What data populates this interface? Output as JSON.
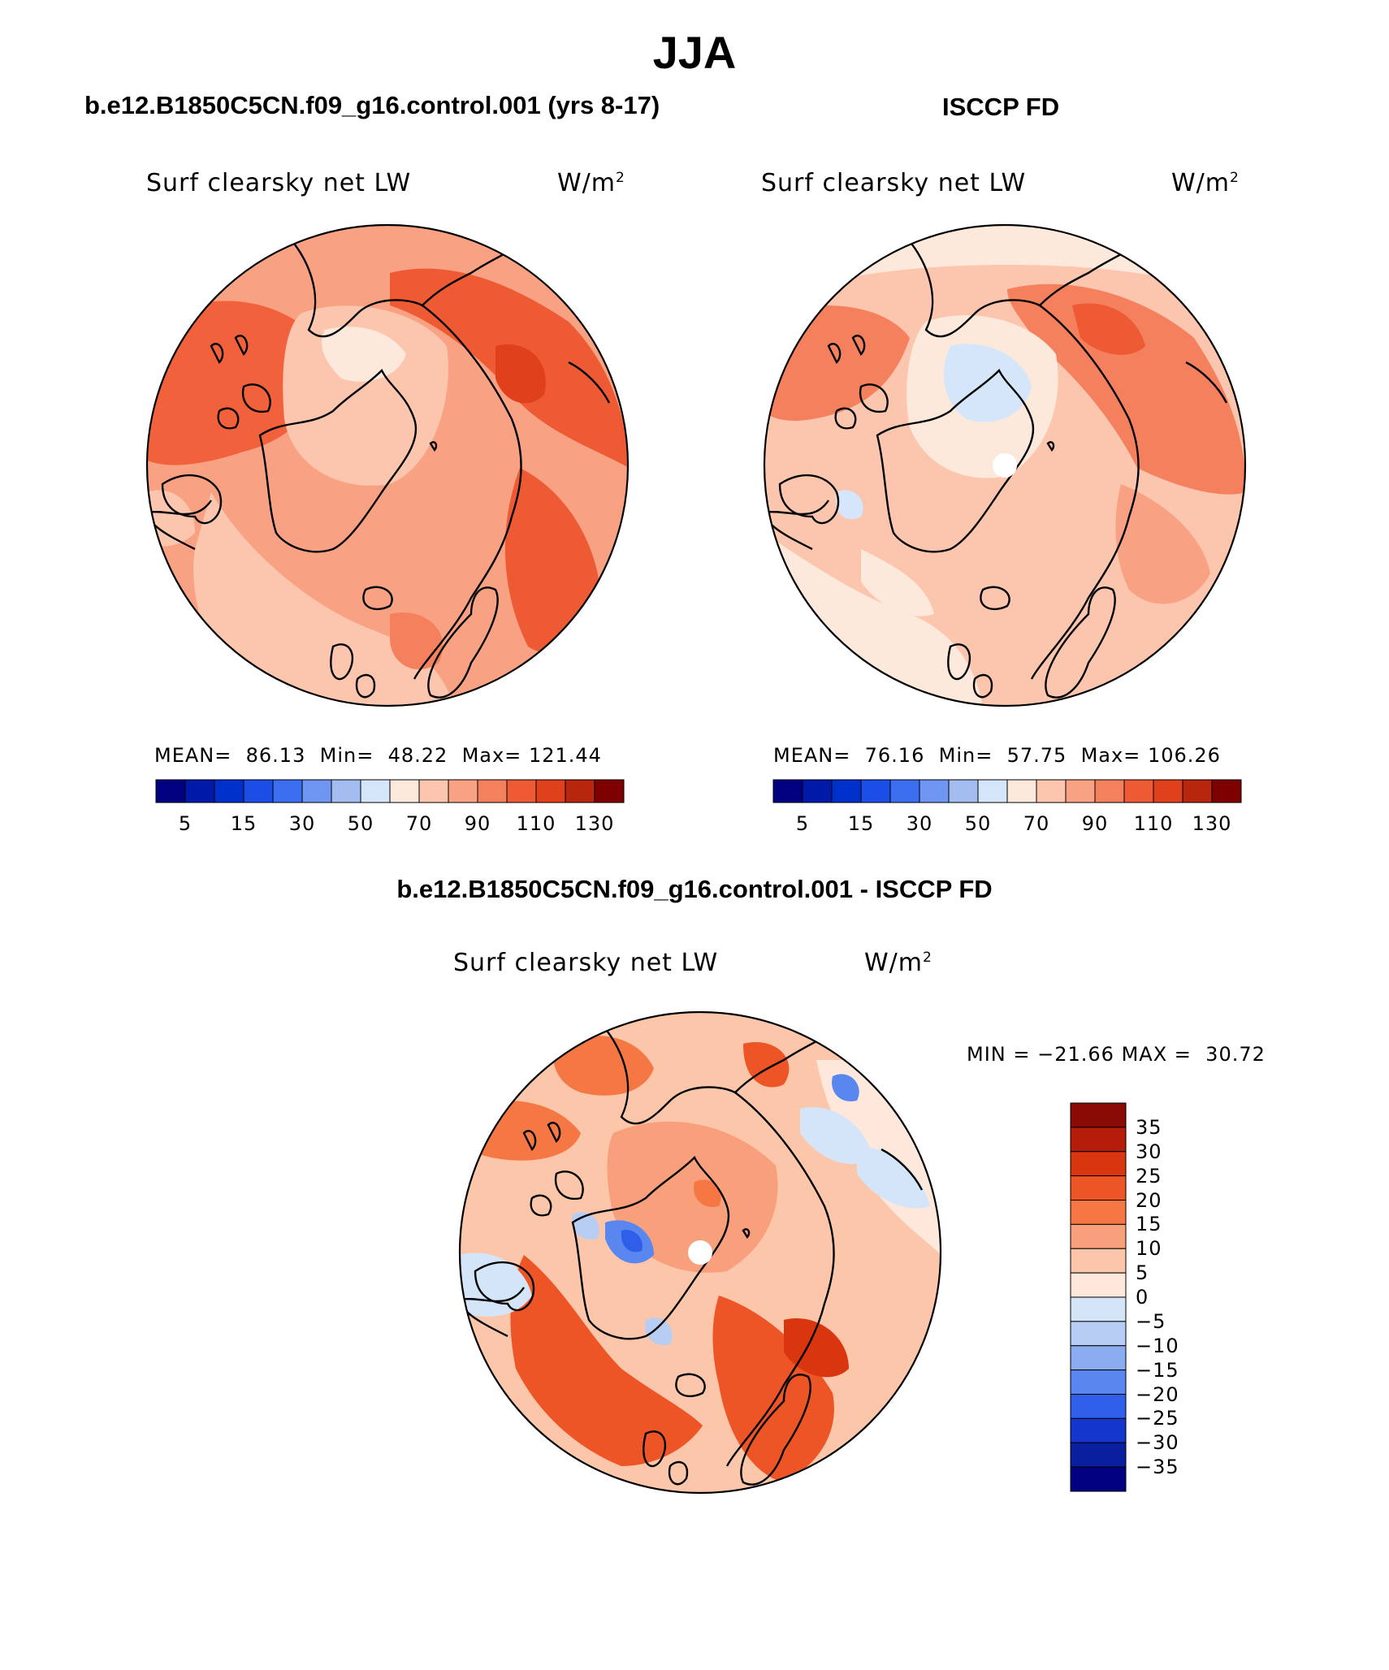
{
  "title": "JJA",
  "panels": {
    "model": {
      "case_title": "b.e12.B1850C5CN.f09_g16.control.001 (yrs 8-17)",
      "variable": "Surf clearsky net LW",
      "units": "W/m",
      "units_sup": "2",
      "mean_label": "MEAN=",
      "mean": "86.13",
      "min_label": "Min=",
      "min": "48.22",
      "max_label": "Max=",
      "max": "121.44"
    },
    "obs": {
      "case_title": "ISCCP FD",
      "variable": "Surf clearsky net LW",
      "units": "W/m",
      "units_sup": "2",
      "mean_label": "MEAN=",
      "mean": "76.16",
      "min_label": "Min=",
      "min": "57.75",
      "max_label": "Max=",
      "max": "106.26"
    },
    "diff": {
      "case_title": "b.e12.B1850C5CN.f09_g16.control.001 - ISCCP FD",
      "variable": "Surf clearsky net LW",
      "units": "W/m",
      "units_sup": "2",
      "min_label": "MIN =",
      "min": "−21.66",
      "max_label": "MAX =",
      "max": "30.72"
    }
  },
  "colorbar_abs": {
    "colors": [
      "#000080",
      "#0019a8",
      "#0030cc",
      "#1a4ee6",
      "#3b6ef0",
      "#6f96f2",
      "#a3bdf0",
      "#d6e6fa",
      "#fde9dc",
      "#fcc5ad",
      "#f8a283",
      "#f4805d",
      "#ee5a34",
      "#e0401c",
      "#b8260e",
      "#7f0000"
    ],
    "tick_labels": [
      "5",
      "15",
      "30",
      "50",
      "70",
      "90",
      "110",
      "130"
    ]
  },
  "colorbar_diff": {
    "colors_top_to_bottom": [
      "#8a0a06",
      "#b51d0a",
      "#d9360f",
      "#ee5526",
      "#f57844",
      "#f8a07c",
      "#fcc6aa",
      "#fde8db",
      "#d4e5fa",
      "#b7cdf4",
      "#8cacf1",
      "#5a87ef",
      "#2f5ee9",
      "#1536cc",
      "#0a1f9e",
      "#000080"
    ],
    "tick_labels": [
      "35",
      "30",
      "25",
      "20",
      "15",
      "10",
      "5",
      "0",
      "−5",
      "−10",
      "−15",
      "−20",
      "−25",
      "−30",
      "−35"
    ]
  }
}
